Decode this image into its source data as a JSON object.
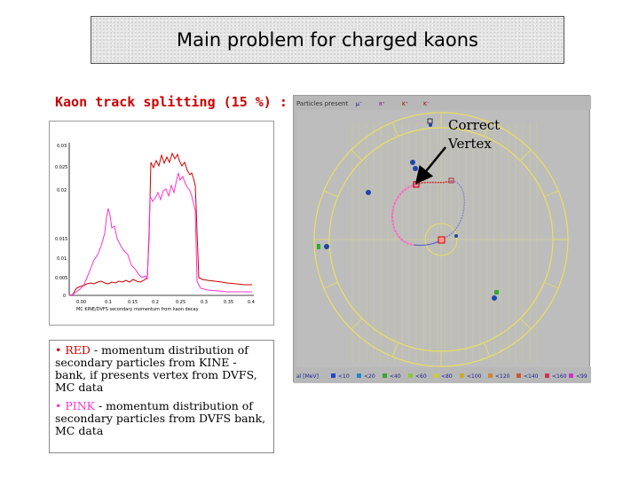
{
  "slide": {
    "title": "Main problem for charged kaons",
    "subtitle": "Kaon track splitting (15 %) :",
    "correct_vertex_label": "Correct\nVertex"
  },
  "histogram": {
    "xlabel": "MC KINE/DVFS secondary momentum from kaon decay",
    "ytick_labels": [
      "0.03",
      "0.025",
      "0.02",
      "0.015",
      "0.01",
      "0.005",
      "0"
    ],
    "xtick_labels": [
      "0.00",
      "0.1",
      "0.15",
      "0.2",
      "0.25",
      "0.3",
      "0.35",
      "0.4"
    ],
    "colors": {
      "red": "#cc0000",
      "pink": "#ff33cc"
    }
  },
  "event_display": {
    "legend_top": "Particles present",
    "legend_particles": [
      "μ⁻",
      "π⁺",
      "K⁺",
      "K⁻"
    ],
    "energy_label": "al  [MeV]",
    "energy_bins": [
      "<10",
      "<20",
      "<40",
      "<60",
      "<80",
      "<100",
      "<120",
      "<140",
      "<160",
      "<99"
    ]
  },
  "notes": {
    "red_bullet": "• RED",
    "red_text": " - momentum distribution of secondary particles from KINE - bank, if presents vertex from DVFS, MC data",
    "pink_bullet": "• PINK",
    "pink_text": " - momentum distribution of secondary particles from DVFS bank, MC data"
  }
}
